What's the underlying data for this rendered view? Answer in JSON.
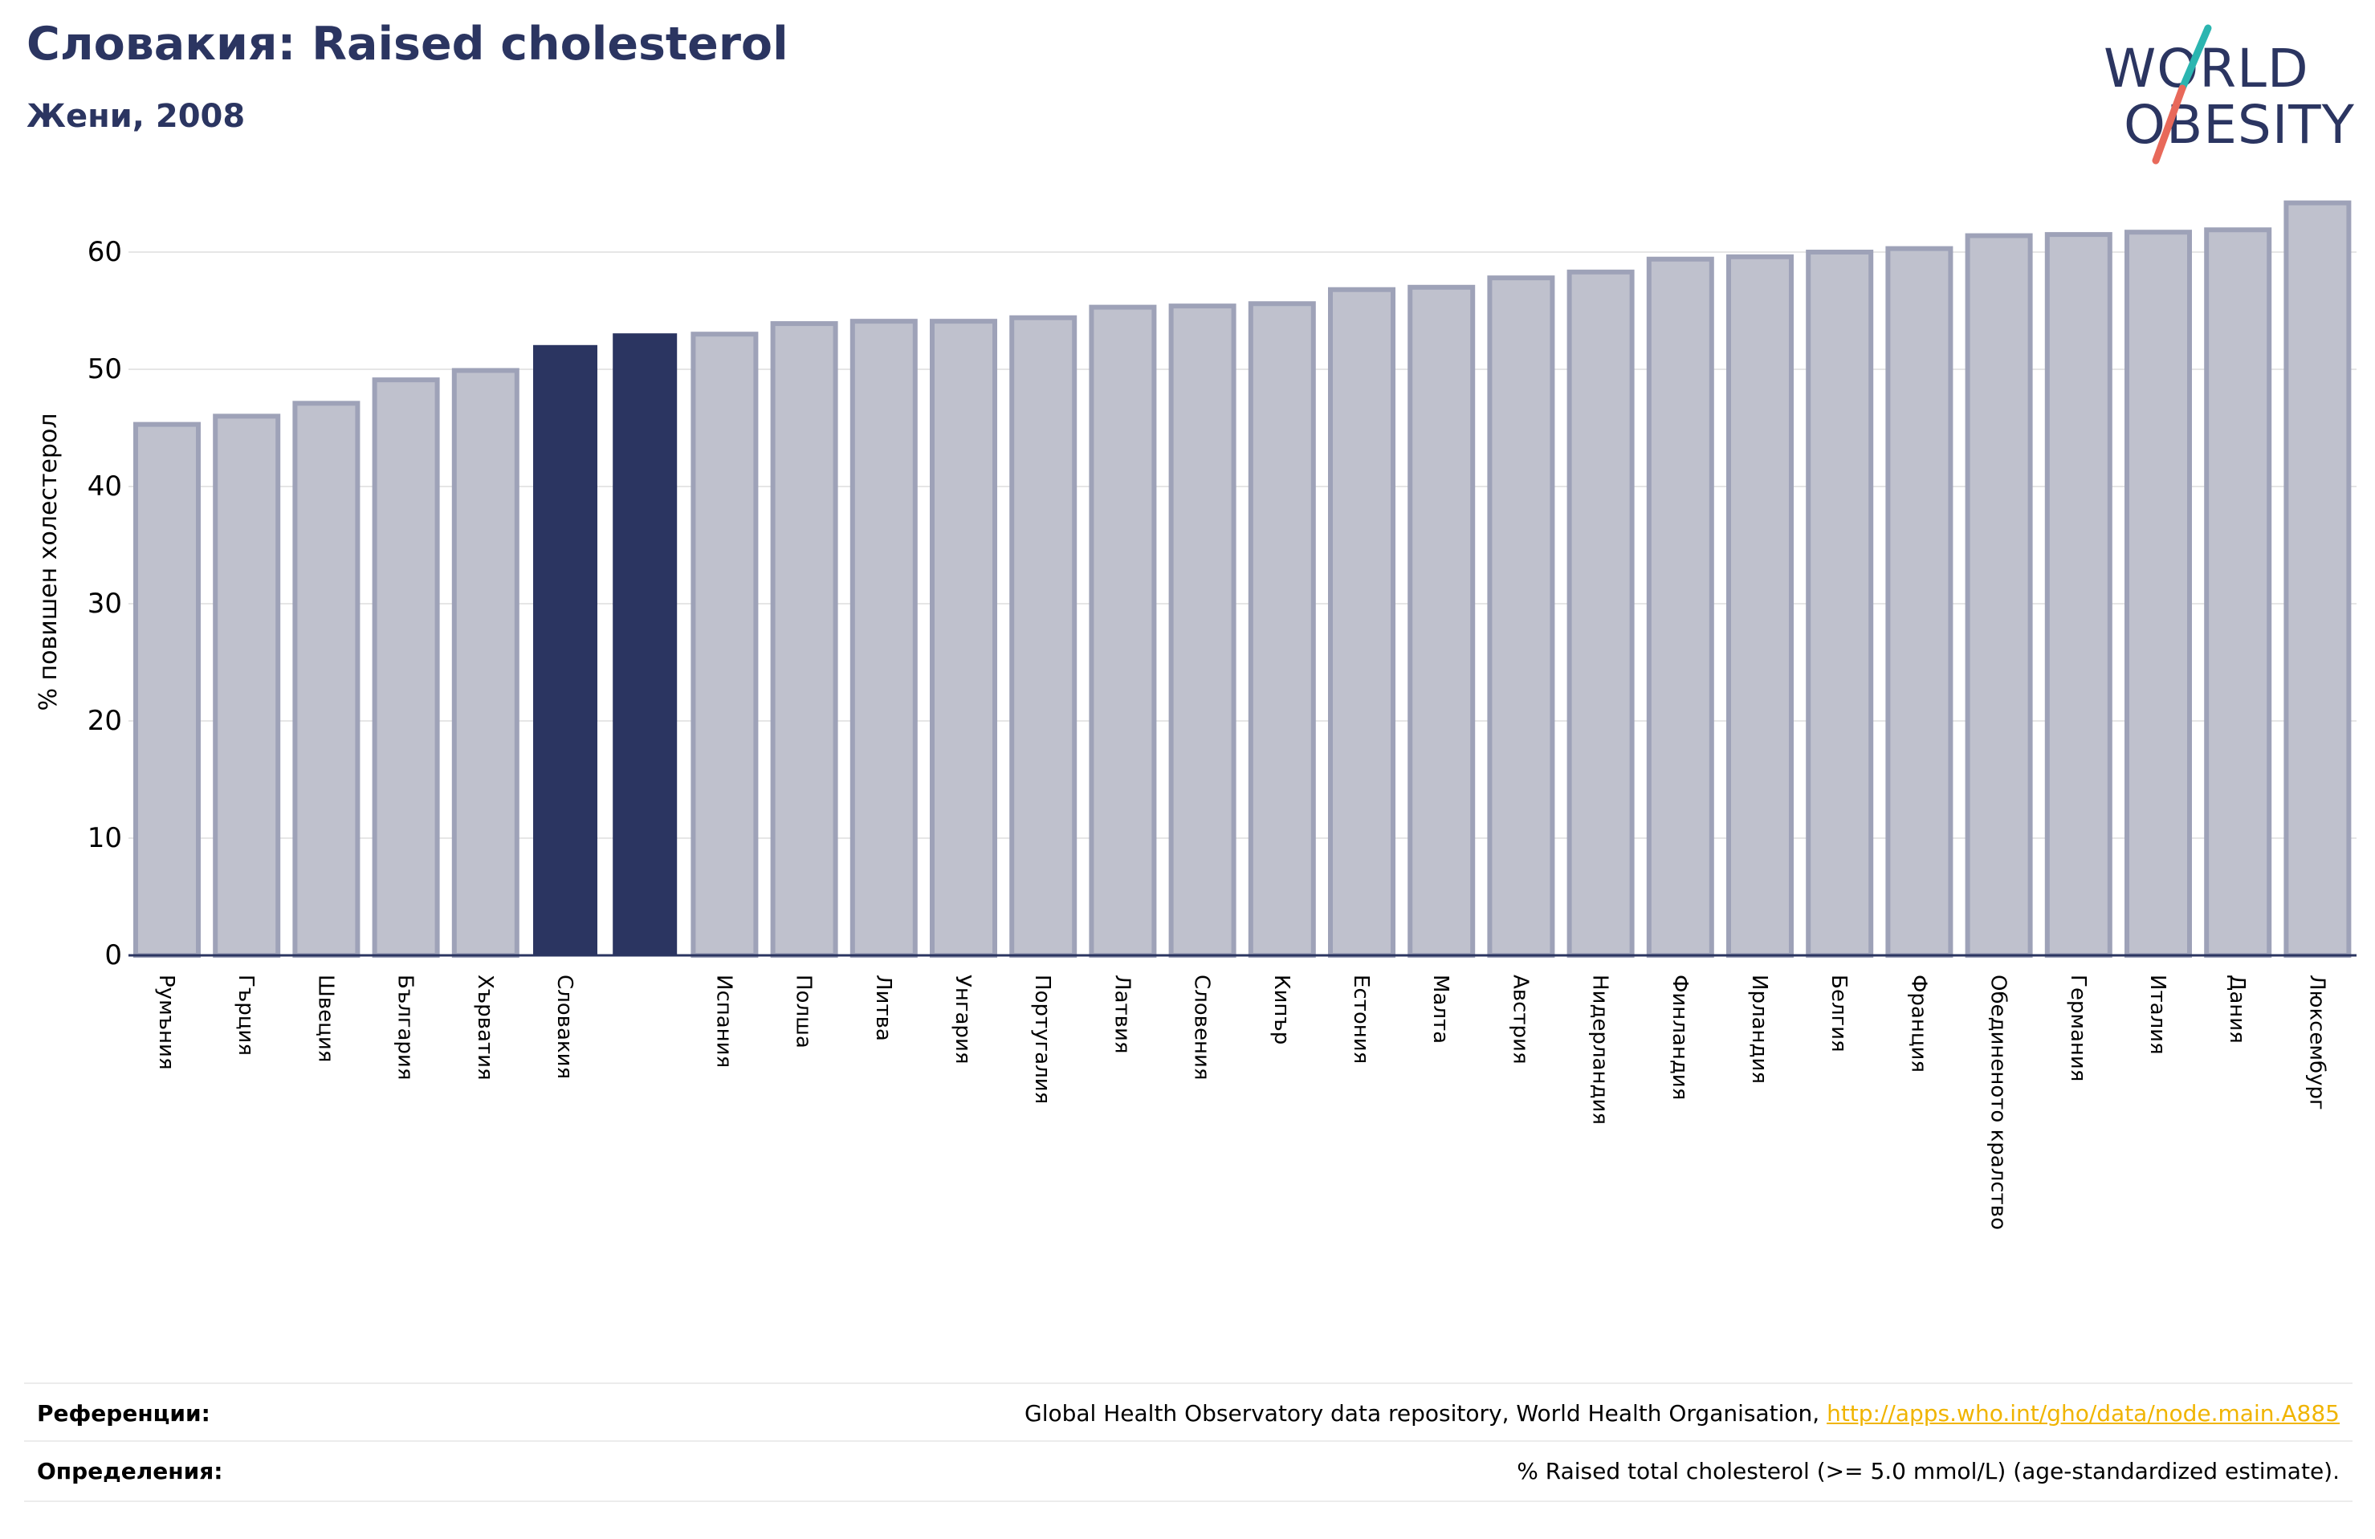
{
  "header": {
    "title": "Словакия: Raised cholesterol",
    "subtitle": "Жени, 2008"
  },
  "logo": {
    "line1": "WORLD",
    "line2": "OBESITY",
    "slash_color_top": "#2bb5b0",
    "slash_color_bottom": "#e8695a"
  },
  "chart_data": {
    "type": "bar",
    "ylabel": "% повишен холестерол",
    "ylim": [
      0,
      65
    ],
    "yticks": [
      0,
      10,
      20,
      30,
      40,
      50,
      60
    ],
    "grid": true,
    "highlight_color": "#2b3561",
    "bar_color": "#bfc1cd",
    "bar_edge_color": "#9ea2b8",
    "categories": [
      "Румъния",
      "Гърция",
      "Швеция",
      "България",
      "Хърватия",
      "Словакия",
      "",
      "Испания",
      "Полша",
      "Литва",
      "Унгария",
      "Португалия",
      "Латвия",
      "Словения",
      "Кипър",
      "Естония",
      "Малта",
      "Австрия",
      "Нидерландия",
      "Финландия",
      "Ирландия",
      "Белгия",
      "Франция",
      "Обединеното кралство",
      "Германия",
      "Италия",
      "Дания",
      "Люксембург"
    ],
    "values": [
      45.3,
      46.0,
      47.1,
      49.1,
      49.9,
      52.0,
      53.0,
      53.0,
      53.9,
      54.1,
      54.1,
      54.4,
      55.3,
      55.4,
      55.6,
      56.8,
      57.0,
      57.8,
      58.3,
      59.4,
      59.6,
      60.0,
      60.3,
      61.4,
      61.5,
      61.7,
      61.9,
      64.2
    ],
    "highlighted": [
      false,
      false,
      false,
      false,
      false,
      true,
      true,
      false,
      false,
      false,
      false,
      false,
      false,
      false,
      false,
      false,
      false,
      false,
      false,
      false,
      false,
      false,
      false,
      false,
      false,
      false,
      false,
      false
    ]
  },
  "footer": {
    "references_label": "Референции:",
    "references_text": "Global Health Observatory data repository, World Health Organisation, ",
    "references_link": "http://apps.who.int/gho/data/node.main.A885",
    "definitions_label": "Определения:",
    "definitions_text": "% Raised total cholesterol (>= 5.0 mmol/L) (age-standardized estimate)."
  }
}
